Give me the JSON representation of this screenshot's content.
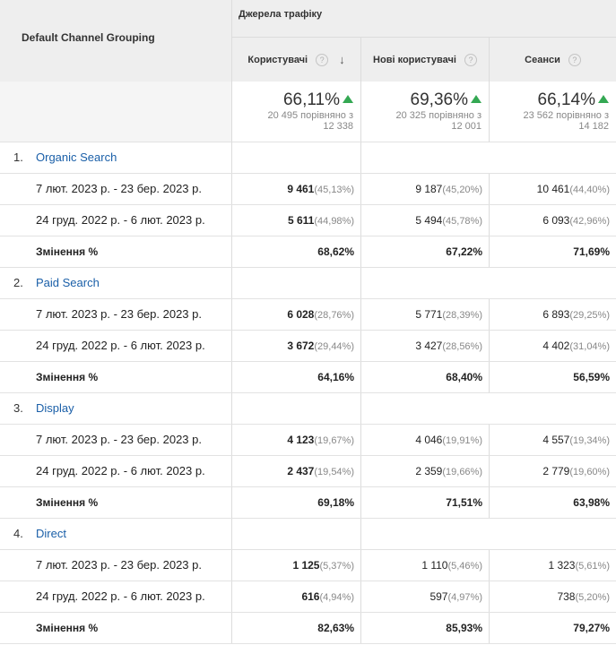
{
  "header": {
    "dimension": "Default Channel Grouping",
    "group": "Джерела трафіку",
    "columns": [
      {
        "label": "Користувачі",
        "help": "?",
        "sort": "↓"
      },
      {
        "label": "Нові користувачі",
        "help": "?"
      },
      {
        "label": "Сеанси",
        "help": "?"
      }
    ]
  },
  "totals": [
    {
      "pct": "66,11%",
      "line1": "20 495 порівняно з",
      "line2": "12 338"
    },
    {
      "pct": "69,36%",
      "line1": "20 325 порівняно з",
      "line2": "12 001"
    },
    {
      "pct": "66,14%",
      "line1": "23 562 порівняно з",
      "line2": "14 182"
    }
  ],
  "groups": [
    {
      "num": "1.",
      "name": "Organic Search",
      "rows": [
        {
          "label": "7 лют. 2023 р. - 23 бер. 2023 р.",
          "cells": [
            {
              "v": "9 461",
              "p": "(45,13%)"
            },
            {
              "v": "9 187",
              "p": "(45,20%)"
            },
            {
              "v": "10 461",
              "p": "(44,40%)"
            }
          ]
        },
        {
          "label": "24 груд. 2022 р. - 6 лют. 2023 р.",
          "cells": [
            {
              "v": "5 611",
              "p": "(44,98%)"
            },
            {
              "v": "5 494",
              "p": "(45,78%)"
            },
            {
              "v": "6 093",
              "p": "(42,96%)"
            }
          ]
        }
      ],
      "change": {
        "label": "Змінення %",
        "values": [
          "68,62%",
          "67,22%",
          "71,69%"
        ]
      }
    },
    {
      "num": "2.",
      "name": "Paid Search",
      "rows": [
        {
          "label": "7 лют. 2023 р. - 23 бер. 2023 р.",
          "cells": [
            {
              "v": "6 028",
              "p": "(28,76%)"
            },
            {
              "v": "5 771",
              "p": "(28,39%)"
            },
            {
              "v": "6 893",
              "p": "(29,25%)"
            }
          ]
        },
        {
          "label": "24 груд. 2022 р. - 6 лют. 2023 р.",
          "cells": [
            {
              "v": "3 672",
              "p": "(29,44%)"
            },
            {
              "v": "3 427",
              "p": "(28,56%)"
            },
            {
              "v": "4 402",
              "p": "(31,04%)"
            }
          ]
        }
      ],
      "change": {
        "label": "Змінення %",
        "values": [
          "64,16%",
          "68,40%",
          "56,59%"
        ]
      }
    },
    {
      "num": "3.",
      "name": "Display",
      "rows": [
        {
          "label": "7 лют. 2023 р. - 23 бер. 2023 р.",
          "cells": [
            {
              "v": "4 123",
              "p": "(19,67%)"
            },
            {
              "v": "4 046",
              "p": "(19,91%)"
            },
            {
              "v": "4 557",
              "p": "(19,34%)"
            }
          ]
        },
        {
          "label": "24 груд. 2022 р. - 6 лют. 2023 р.",
          "cells": [
            {
              "v": "2 437",
              "p": "(19,54%)"
            },
            {
              "v": "2 359",
              "p": "(19,66%)"
            },
            {
              "v": "2 779",
              "p": "(19,60%)"
            }
          ]
        }
      ],
      "change": {
        "label": "Змінення %",
        "values": [
          "69,18%",
          "71,51%",
          "63,98%"
        ]
      }
    },
    {
      "num": "4.",
      "name": "Direct",
      "rows": [
        {
          "label": "7 лют. 2023 р. - 23 бер. 2023 р.",
          "cells": [
            {
              "v": "1 125",
              "p": "(5,37%)"
            },
            {
              "v": "1 110",
              "p": "(5,46%)"
            },
            {
              "v": "1 323",
              "p": "(5,61%)"
            }
          ]
        },
        {
          "label": "24 груд. 2022 р. - 6 лют. 2023 р.",
          "cells": [
            {
              "v": "616",
              "p": "(4,94%)"
            },
            {
              "v": "597",
              "p": "(4,97%)"
            },
            {
              "v": "738",
              "p": "(5,20%)"
            }
          ]
        }
      ],
      "change": {
        "label": "Змінення %",
        "values": [
          "82,63%",
          "85,93%",
          "79,27%"
        ]
      }
    }
  ]
}
